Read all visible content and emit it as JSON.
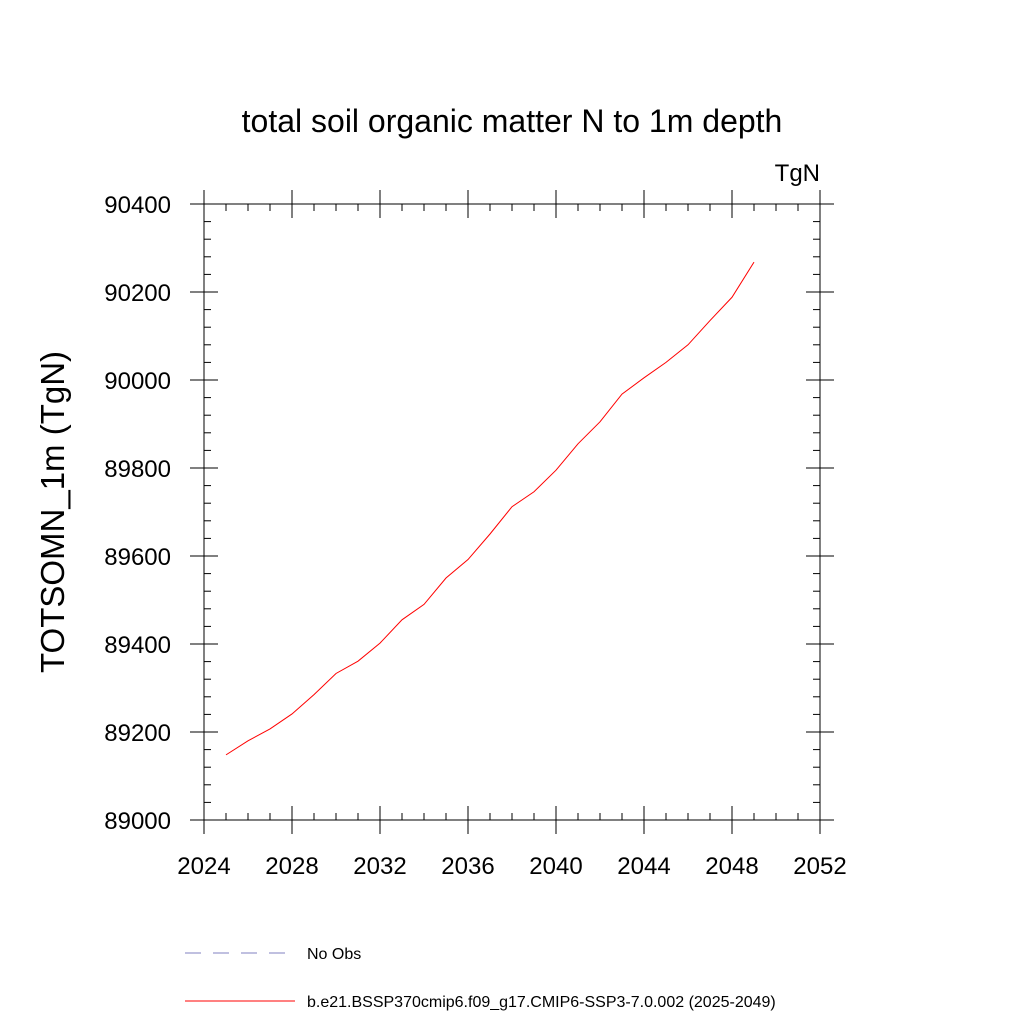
{
  "chart_data": {
    "type": "line",
    "title": "total soil organic matter N to 1m depth",
    "units": "TgN",
    "ylabel": "TOTSOMN_1m  (TgN)",
    "xlabel": "",
    "xlim": [
      2024,
      2052
    ],
    "ylim": [
      89000,
      90400
    ],
    "x_ticks": [
      2024,
      2028,
      2032,
      2036,
      2040,
      2044,
      2048,
      2052
    ],
    "y_ticks": [
      89000,
      89200,
      89400,
      89600,
      89800,
      90000,
      90200,
      90400
    ],
    "x_minor_step": 1,
    "y_minor_step": 40,
    "grid": false,
    "legend_placement": "bottom",
    "series": [
      {
        "name": "b.e21.BSSP370cmip6.f09_g17.CMIP6-SSP3-7.0.002 (2025-2049)",
        "color": "#ff0000",
        "line_style": "solid",
        "x": [
          2025,
          2026,
          2027,
          2028,
          2029,
          2030,
          2031,
          2032,
          2033,
          2034,
          2035,
          2036,
          2037,
          2038,
          2039,
          2040,
          2041,
          2042,
          2043,
          2044,
          2045,
          2046,
          2047,
          2048,
          2049
        ],
        "y": [
          89148,
          89180,
          89207,
          89241,
          89285,
          89333,
          89361,
          89402,
          89455,
          89490,
          89550,
          89592,
          89650,
          89712,
          89746,
          89795,
          89855,
          89905,
          89968,
          90005,
          90040,
          90080,
          90135,
          90188,
          90268
        ]
      }
    ],
    "legend": [
      {
        "label": "No Obs",
        "color": "#8080c0",
        "line_style": "dashed"
      },
      {
        "label": "b.e21.BSSP370cmip6.f09_g17.CMIP6-SSP3-7.0.002 (2025-2049)",
        "color": "#ff0000",
        "line_style": "solid"
      }
    ]
  }
}
